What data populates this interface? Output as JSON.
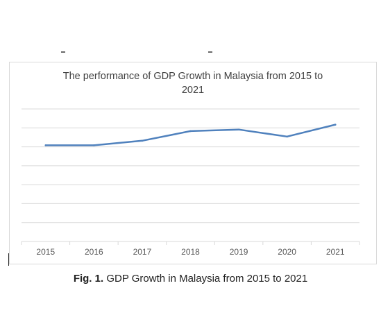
{
  "chart_data": {
    "type": "line",
    "title": "The performance of GDP Growth in Malaysia from 2015 to 2021",
    "title_lines": [
      "The performance of GDP Growth in Malaysia from 2015 to",
      "2021"
    ],
    "categories": [
      "2015",
      "2016",
      "2017",
      "2018",
      "2019",
      "2020",
      "2021"
    ],
    "series": [
      {
        "values": [
          50.8,
          50.8,
          53.2,
          58.3,
          59.1,
          55.4,
          61.7
        ]
      }
    ],
    "ylim": [
      0,
      70
    ],
    "y_gridlines": 7,
    "y_tick_labels_visible": false,
    "grid": true,
    "legend": "none",
    "colors": {
      "line": "#4f81bd",
      "grid": "#d9d9d9",
      "axis_text": "#595959"
    }
  },
  "caption": {
    "label": "Fig. 1.",
    "text": " GDP Growth in Malaysia from 2015 to 2021"
  }
}
